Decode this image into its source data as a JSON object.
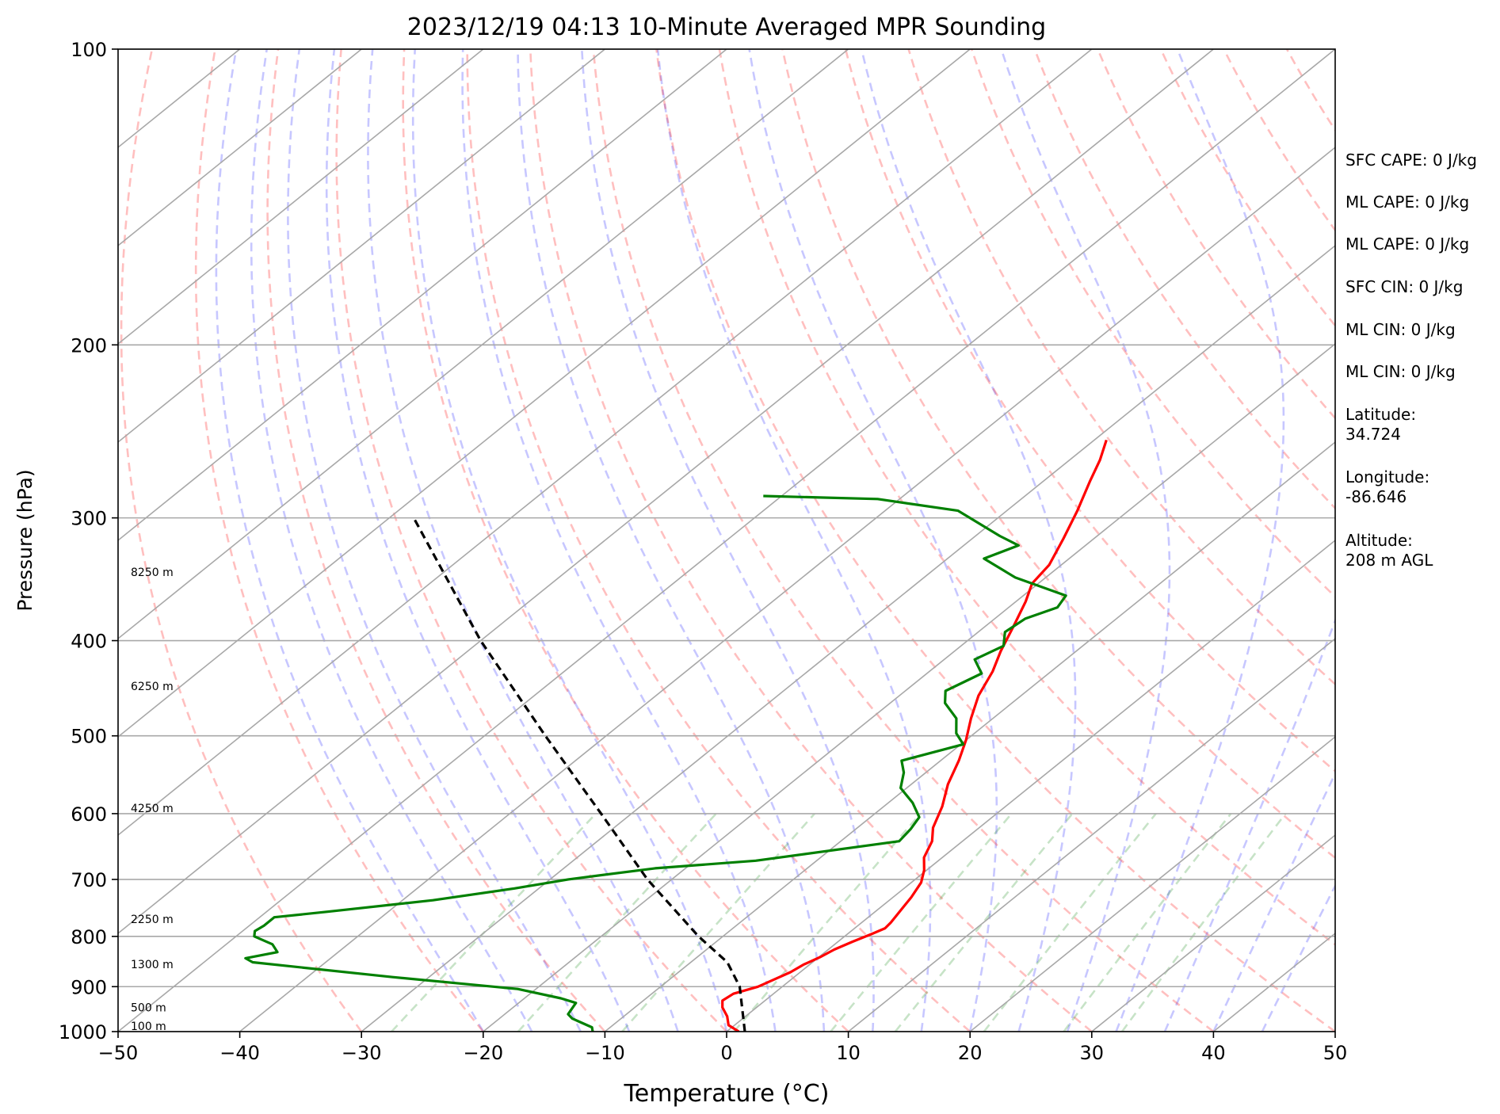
{
  "chart_data": {
    "type": "line",
    "title": "2023/12/19 04:13 10-Minute Averaged MPR Sounding",
    "xlabel": "Temperature (°C)",
    "ylabel": "Pressure (hPa)",
    "xlim": [
      -50,
      50
    ],
    "ylim": [
      1000,
      100
    ],
    "y_scale": "log",
    "x_ticks": [
      -50,
      -40,
      -30,
      -20,
      -10,
      0,
      10,
      20,
      30,
      40,
      50
    ],
    "x_tick_labels": [
      "−50",
      "−40",
      "−30",
      "−20",
      "−10",
      "0",
      "10",
      "20",
      "30",
      "40",
      "50"
    ],
    "y_ticks": [
      1000,
      900,
      800,
      700,
      600,
      500,
      400,
      300,
      200,
      100
    ],
    "y_tick_labels": [
      "1000",
      "900",
      "800",
      "700",
      "600",
      "500",
      "400",
      "300",
      "200",
      "100"
    ],
    "grid": true,
    "skew": "skew-T log-P",
    "series": [
      {
        "role": "temperature",
        "color": "#ff0000",
        "points": [
          [
            1000,
            1.0
          ],
          [
            985,
            -0.5
          ],
          [
            965,
            -1.5
          ],
          [
            945,
            -2.8
          ],
          [
            930,
            -3.5
          ],
          [
            915,
            -3.3
          ],
          [
            900,
            -2.0
          ],
          [
            885,
            -1.4
          ],
          [
            870,
            -0.8
          ],
          [
            855,
            -0.5
          ],
          [
            840,
            0.1
          ],
          [
            825,
            0.5
          ],
          [
            810,
            1.2
          ],
          [
            795,
            2.0
          ],
          [
            785,
            2.5
          ],
          [
            775,
            2.4
          ],
          [
            755,
            2.0
          ],
          [
            730,
            1.5
          ],
          [
            705,
            0.8
          ],
          [
            685,
            -0.2
          ],
          [
            665,
            -1.5
          ],
          [
            640,
            -2.5
          ],
          [
            620,
            -3.8
          ],
          [
            590,
            -5.2
          ],
          [
            560,
            -7.0
          ],
          [
            530,
            -8.5
          ],
          [
            505,
            -10.0
          ],
          [
            480,
            -11.8
          ],
          [
            455,
            -13.5
          ],
          [
            430,
            -14.8
          ],
          [
            410,
            -16.2
          ],
          [
            385,
            -17.8
          ],
          [
            365,
            -19.2
          ],
          [
            350,
            -20.5
          ],
          [
            335,
            -21.0
          ],
          [
            315,
            -22.5
          ],
          [
            295,
            -24.2
          ],
          [
            275,
            -26.2
          ],
          [
            262,
            -27.5
          ],
          [
            250,
            -29.0
          ]
        ]
      },
      {
        "role": "dewpoint",
        "color": "#008000",
        "points": [
          [
            1000,
            -11.0
          ],
          [
            990,
            -11.5
          ],
          [
            978,
            -13.0
          ],
          [
            970,
            -14.0
          ],
          [
            960,
            -14.8
          ],
          [
            950,
            -15.0
          ],
          [
            935,
            -15.3
          ],
          [
            925,
            -17.0
          ],
          [
            905,
            -21.5
          ],
          [
            880,
            -33.0
          ],
          [
            850,
            -46.0
          ],
          [
            842,
            -47.0
          ],
          [
            830,
            -45.0
          ],
          [
            815,
            -46.2
          ],
          [
            800,
            -48.5
          ],
          [
            790,
            -49.0
          ],
          [
            780,
            -48.8
          ],
          [
            765,
            -48.8
          ],
          [
            755,
            -45.0
          ],
          [
            735,
            -37.5
          ],
          [
            715,
            -32.0
          ],
          [
            700,
            -28.5
          ],
          [
            682,
            -22.5
          ],
          [
            670,
            -15.0
          ],
          [
            640,
            -5.2
          ],
          [
            622,
            -5.5
          ],
          [
            605,
            -6.0
          ],
          [
            585,
            -8.0
          ],
          [
            565,
            -10.5
          ],
          [
            545,
            -11.8
          ],
          [
            530,
            -13.2
          ],
          [
            510,
            -9.8
          ],
          [
            497,
            -11.5
          ],
          [
            480,
            -13.0
          ],
          [
            463,
            -15.5
          ],
          [
            450,
            -16.7
          ],
          [
            432,
            -15.5
          ],
          [
            418,
            -17.5
          ],
          [
            405,
            -16.5
          ],
          [
            392,
            -17.8
          ],
          [
            380,
            -17.5
          ],
          [
            370,
            -16.0
          ],
          [
            360,
            -16.5
          ],
          [
            345,
            -22.5
          ],
          [
            330,
            -27.0
          ],
          [
            320,
            -25.5
          ],
          [
            313,
            -28.0
          ],
          [
            295,
            -34.0
          ],
          [
            287,
            -41.8
          ],
          [
            285,
            -51.5
          ]
        ]
      },
      {
        "role": "parcel",
        "color": "#000000",
        "dashed": true,
        "points": [
          [
            1000,
            1.5
          ],
          [
            900,
            -3.5
          ],
          [
            850,
            -7.0
          ],
          [
            800,
            -12.0
          ],
          [
            700,
            -22.0
          ],
          [
            600,
            -32.5
          ],
          [
            500,
            -45.0
          ],
          [
            400,
            -60.0
          ],
          [
            300,
            -78.0
          ]
        ]
      }
    ],
    "height_labels": [
      {
        "p": 1000,
        "text": "100 m"
      },
      {
        "p": 957,
        "text": "500 m"
      },
      {
        "p": 865,
        "text": "1300 m"
      },
      {
        "p": 778,
        "text": "2250 m"
      },
      {
        "p": 600,
        "text": "4250 m"
      },
      {
        "p": 451,
        "text": "6250 m"
      },
      {
        "p": 345,
        "text": "8250 m"
      }
    ]
  },
  "info": {
    "sfc_cape": "SFC CAPE: 0 J/kg",
    "ml_cape_1": "ML CAPE: 0 J/kg",
    "ml_cape_2": "ML CAPE: 0 J/kg",
    "sfc_cin": "SFC CIN: 0 J/kg",
    "ml_cin_1": "ML CIN: 0 J/kg",
    "ml_cin_2": "ML CIN: 0 J/kg",
    "latitude": "Latitude:\n34.724",
    "longitude": "Longitude:\n-86.646",
    "altitude": "Altitude:\n208 m AGL"
  }
}
